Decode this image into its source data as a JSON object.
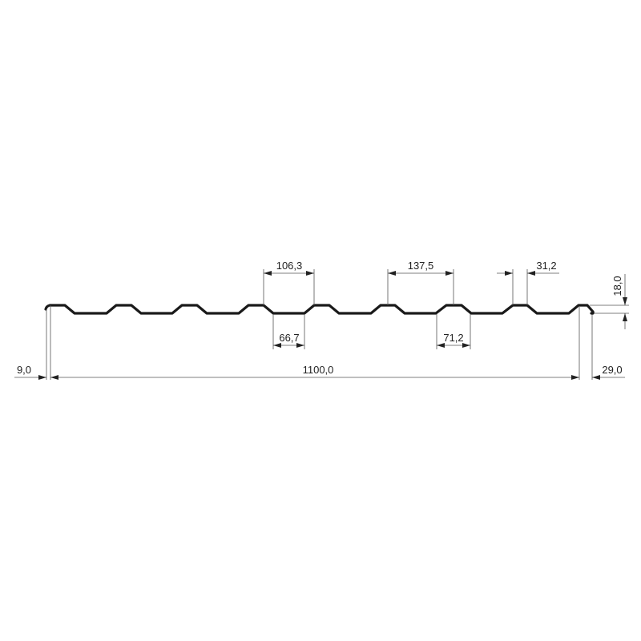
{
  "colors": {
    "profile": "#1a1a1a",
    "dimension": "#555555",
    "text": "#222222"
  },
  "dimensions": {
    "rib_pitch_top": "106,3",
    "trough_bottom": "66,7",
    "rib_pitch": "137,5",
    "trough_bottom_2": "71,2",
    "rib_top": "31,2",
    "height": "18,0",
    "left_overhang": "9,0",
    "cover_width": "1100,0",
    "right_overlap": "29,0"
  }
}
